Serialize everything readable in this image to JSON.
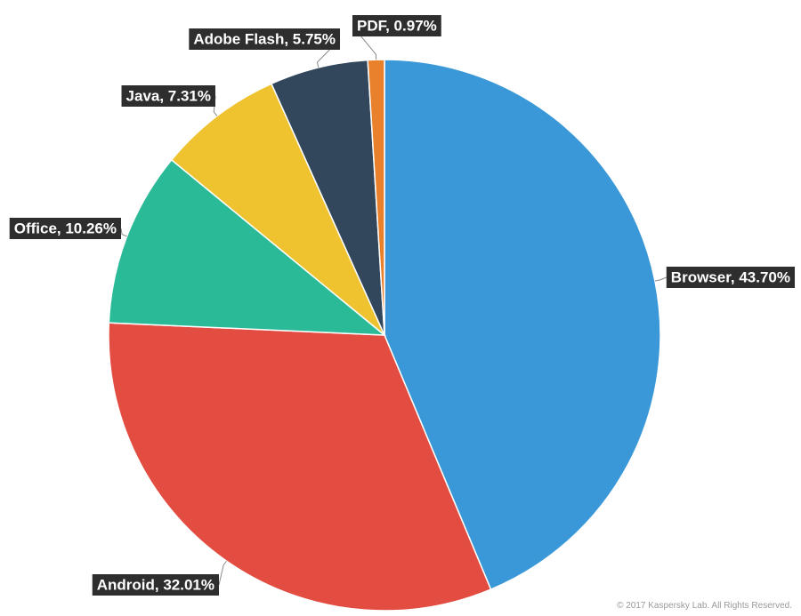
{
  "chart_data": {
    "type": "pie",
    "title": "",
    "slices": [
      {
        "label": "Browser, 43.70%",
        "category": "Browser",
        "value": 43.7,
        "color": "#3a98d8"
      },
      {
        "label": "Android, 32.01%",
        "category": "Android",
        "value": 32.01,
        "color": "#e34c40"
      },
      {
        "label": "Office, 10.26%",
        "category": "Office",
        "value": 10.26,
        "color": "#2bba97"
      },
      {
        "label": "Java, 7.31%",
        "category": "Java",
        "value": 7.31,
        "color": "#efc22f"
      },
      {
        "label": "Adobe Flash, 5.75%",
        "category": "Adobe Flash",
        "value": 5.75,
        "color": "#32475c"
      },
      {
        "label": "PDF, 0.97%",
        "category": "PDF",
        "value": 0.97,
        "color": "#e8802c"
      }
    ],
    "start_angle_deg": 0,
    "direction": "clockwise",
    "label_style": {
      "background": "#2e2e2e",
      "text": "#ffffff",
      "leader_line": "#8a8a8a"
    }
  },
  "footer": {
    "copyright": "© 2017 Kaspersky Lab. All Rights Reserved."
  }
}
